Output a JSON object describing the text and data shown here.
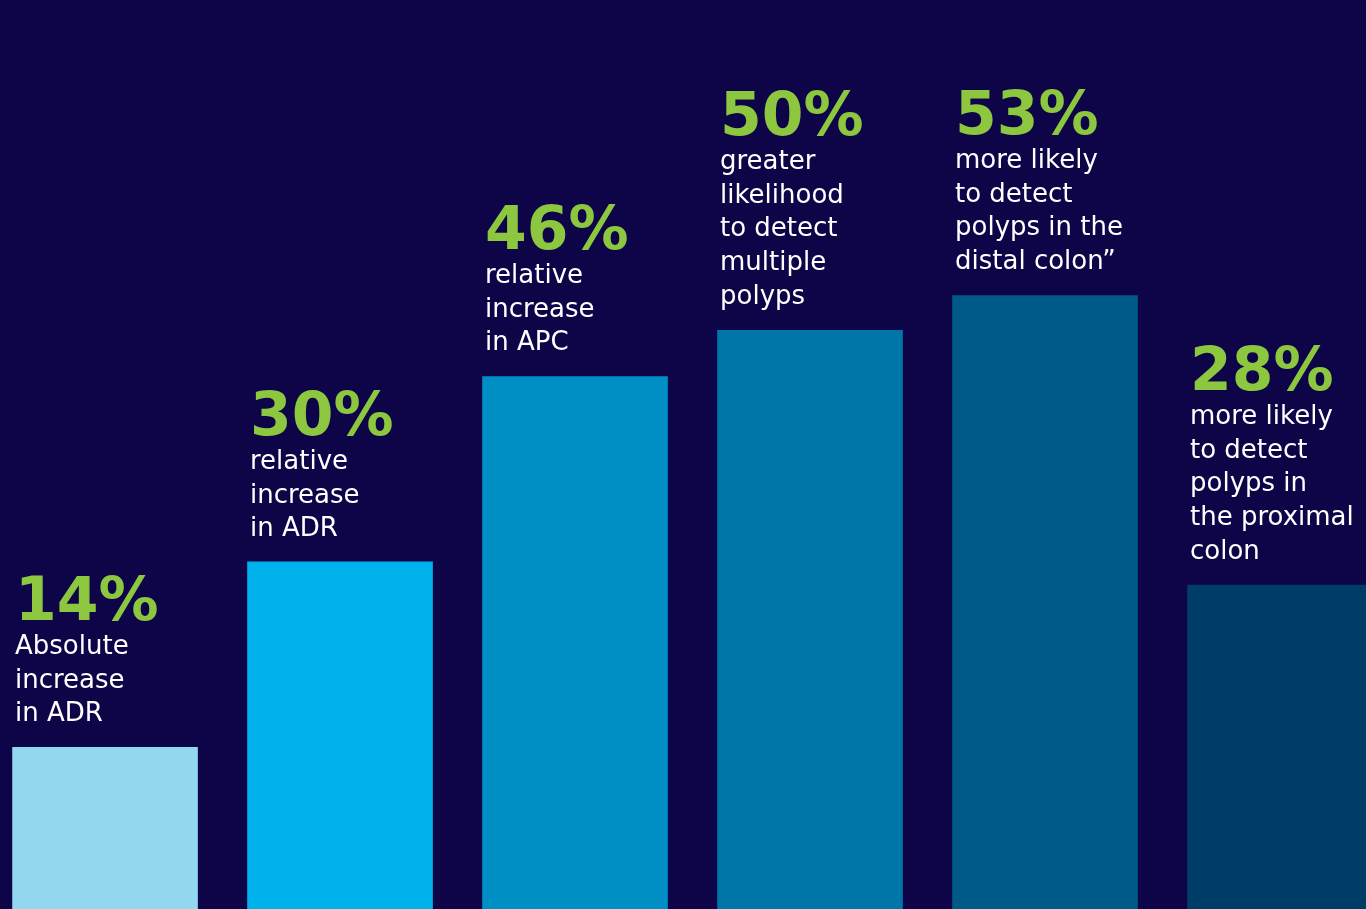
{
  "chart_data": {
    "type": "bar",
    "categories": [
      "Absolute\nincrease\nin ADR",
      "relative\nincrease\nin ADR",
      "relative\nincrease\nin APC",
      "greater\nlikelihood\nto detect\nmultiple\npolyps",
      "more likely\nto detect\npolyps in the\ndistal colon”",
      "more likely\nto detect\npolyps in\nthe proximal\ncolon"
    ],
    "values": [
      14,
      30,
      46,
      50,
      53,
      28
    ],
    "value_labels": [
      "14%",
      "30%",
      "46%",
      "50%",
      "53%",
      "28%"
    ],
    "colors": [
      "#93d6f0",
      "#00b2eb",
      "#008fc5",
      "#0076a8",
      "#005a88",
      "#003d66"
    ],
    "ylim": [
      0,
      78.5
    ],
    "tick_labels": false,
    "grid": false,
    "legend": false
  }
}
